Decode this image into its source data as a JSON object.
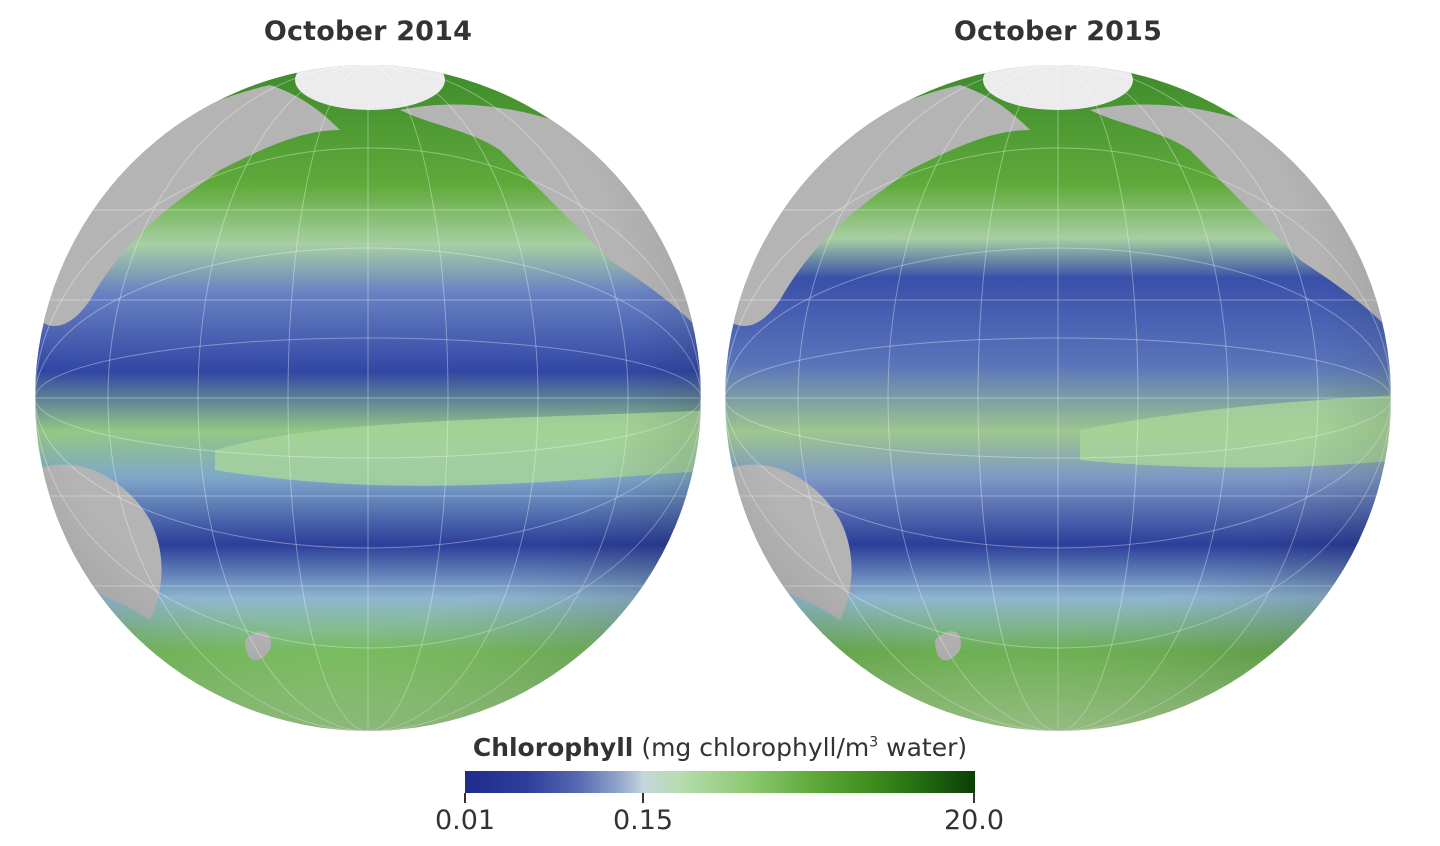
{
  "panels": [
    {
      "title": "October 2014"
    },
    {
      "title": "October 2015"
    }
  ],
  "legend": {
    "title": "Chlorophyll",
    "units_prefix": "(mg chlorophyll/m",
    "units_sup": "3",
    "units_suffix": " water)",
    "scale": "log",
    "ticks": [
      {
        "label": "0.01",
        "value": 0.01
      },
      {
        "label": "0.15",
        "value": 0.15
      },
      {
        "label": "20.0",
        "value": 20.0
      }
    ],
    "colors": {
      "low": "#1e2c8c",
      "mid": "#c4d6dc",
      "high": "#0c3e06",
      "land": "#b4b4b4",
      "ice": "#ececec",
      "graticule": "#ffffff"
    }
  }
}
